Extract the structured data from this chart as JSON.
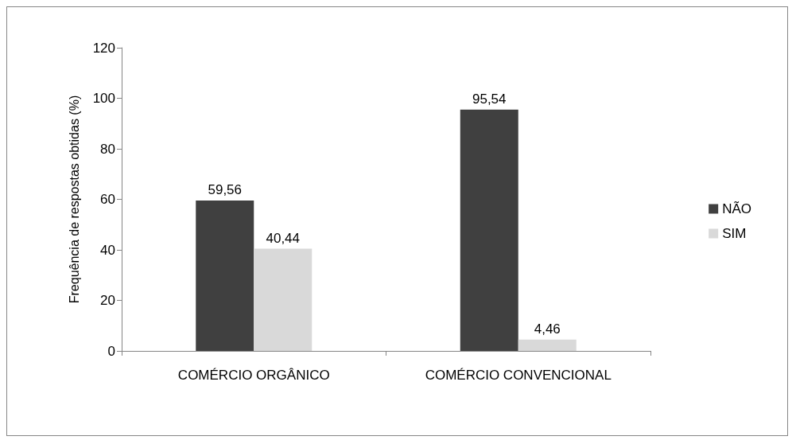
{
  "chart_data": {
    "type": "bar",
    "ylabel": "Frequência de respostas obtidas (%)",
    "categories": [
      "COMÉRCIO ORGÂNICO",
      "COMÉRCIO CONVENCIONAL"
    ],
    "series": [
      {
        "name": "NÃO",
        "color": "#404040",
        "values": [
          59.56,
          95.54
        ],
        "value_labels": [
          "59,56",
          "95,54"
        ]
      },
      {
        "name": "SIM",
        "color": "#d9d9d9",
        "values": [
          40.44,
          4.46
        ],
        "value_labels": [
          "40,44",
          "4,46"
        ]
      }
    ],
    "ylim": [
      0,
      120
    ],
    "yticks": [
      0,
      20,
      40,
      60,
      80,
      100,
      120
    ],
    "grid": false,
    "legend": "right"
  }
}
